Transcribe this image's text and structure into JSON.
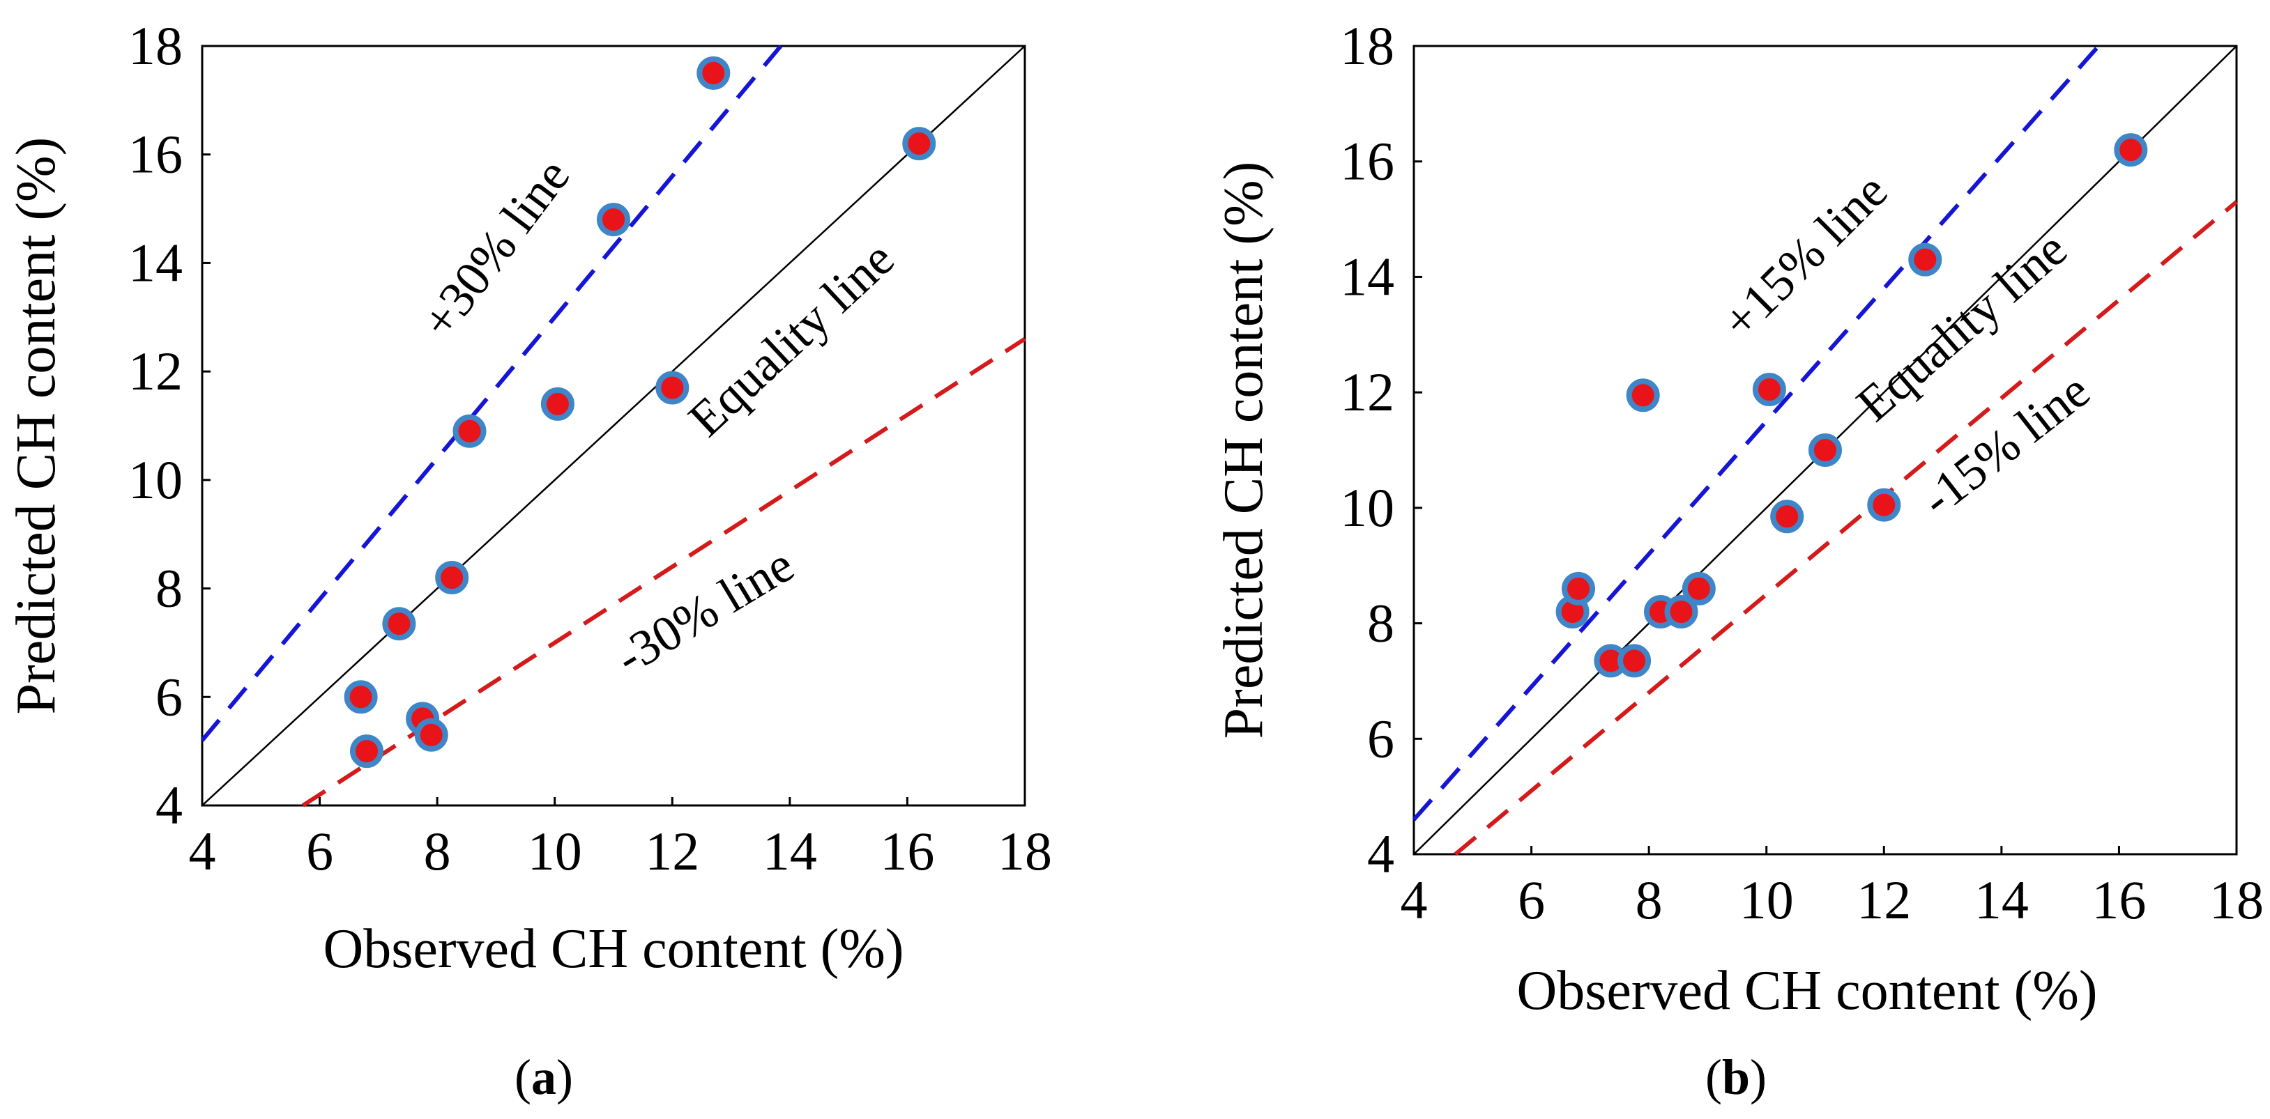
{
  "chart_data": [
    {
      "id": "a",
      "type": "scatter",
      "caption_open": "(",
      "caption_letter": "a",
      "caption_close": ")",
      "xlabel": "Observed CH content (%)",
      "ylabel": "Predicted CH content (%)",
      "xlim": [
        4,
        18
      ],
      "ylim": [
        4,
        18
      ],
      "xticks": [
        4,
        6,
        8,
        10,
        12,
        14,
        16,
        18
      ],
      "yticks": [
        4,
        6,
        8,
        10,
        12,
        14,
        16,
        18
      ],
      "grid": false,
      "marker_fill": "#e8141a",
      "marker_edge": "#3f86c8",
      "points": [
        {
          "x": 6.7,
          "y": 6.0
        },
        {
          "x": 6.8,
          "y": 5.0
        },
        {
          "x": 7.35,
          "y": 7.35
        },
        {
          "x": 7.75,
          "y": 5.6
        },
        {
          "x": 7.9,
          "y": 5.3
        },
        {
          "x": 8.25,
          "y": 8.2
        },
        {
          "x": 8.55,
          "y": 10.9
        },
        {
          "x": 10.05,
          "y": 11.4
        },
        {
          "x": 11.0,
          "y": 14.8
        },
        {
          "x": 12.0,
          "y": 11.7
        },
        {
          "x": 12.7,
          "y": 17.5
        },
        {
          "x": 16.2,
          "y": 16.2
        }
      ],
      "lines": [
        {
          "name": "Equality line",
          "slope": 1.0,
          "color": "#000000",
          "dashed": false,
          "label": "Equality line"
        },
        {
          "name": "+30% line",
          "slope": 1.3,
          "color": "#1515d6",
          "dashed": true,
          "label": "+30% line"
        },
        {
          "name": "-30% line",
          "slope": 0.7,
          "color": "#d41a1a",
          "dashed": true,
          "label": "-30% line"
        }
      ]
    },
    {
      "id": "b",
      "type": "scatter",
      "caption_open": "(",
      "caption_letter": "b",
      "caption_close": ")",
      "xlabel": "Observed CH content (%)",
      "ylabel": "Predicted CH content (%)",
      "xlim": [
        4,
        18
      ],
      "ylim": [
        4,
        18
      ],
      "xticks": [
        4,
        6,
        8,
        10,
        12,
        14,
        16,
        18
      ],
      "yticks": [
        4,
        6,
        8,
        10,
        12,
        14,
        16,
        18
      ],
      "grid": false,
      "marker_fill": "#e8141a",
      "marker_edge": "#3f86c8",
      "points": [
        {
          "x": 6.7,
          "y": 8.2
        },
        {
          "x": 6.8,
          "y": 8.6
        },
        {
          "x": 7.35,
          "y": 7.35
        },
        {
          "x": 7.75,
          "y": 7.35
        },
        {
          "x": 7.9,
          "y": 11.95
        },
        {
          "x": 8.2,
          "y": 8.2
        },
        {
          "x": 8.55,
          "y": 8.2
        },
        {
          "x": 8.85,
          "y": 8.6
        },
        {
          "x": 10.05,
          "y": 12.05
        },
        {
          "x": 10.35,
          "y": 9.85
        },
        {
          "x": 11.0,
          "y": 11.0
        },
        {
          "x": 12.0,
          "y": 10.05
        },
        {
          "x": 12.7,
          "y": 14.3
        },
        {
          "x": 16.2,
          "y": 16.2
        }
      ],
      "lines": [
        {
          "name": "Equality line",
          "slope": 1.0,
          "color": "#000000",
          "dashed": false,
          "label": "Equality line"
        },
        {
          "name": "+15% line",
          "slope": 1.15,
          "color": "#1515d6",
          "dashed": true,
          "label": "+15% line"
        },
        {
          "name": "-15% line",
          "slope": 0.85,
          "color": "#d41a1a",
          "dashed": true,
          "label": "-15% line"
        }
      ]
    }
  ]
}
